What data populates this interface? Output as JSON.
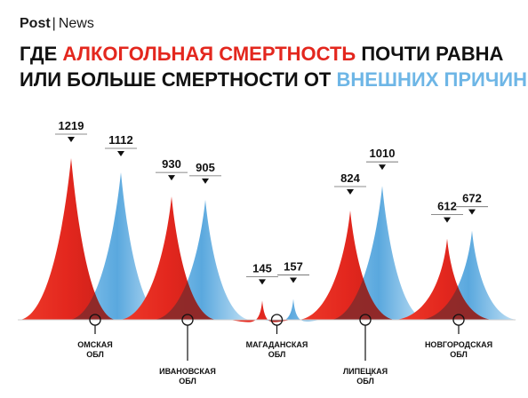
{
  "brand": {
    "name_part1": "Post",
    "name_part2": "News"
  },
  "title": {
    "line1_pre": "ГДЕ ",
    "line1_highlight": "АЛКОГОЛЬНАЯ СМЕРТНОСТЬ",
    "line1_post": " ПОЧТИ РАВНА",
    "line2_pre": "ИЛИ БОЛЬШЕ СМЕРТНОСТИ ОТ ",
    "line2_highlight": "ВНЕШНИХ ПРИЧИН"
  },
  "colors": {
    "alcohol": "#e3271e",
    "external": "#6eb6e6",
    "overlap": "#8c2a2a"
  },
  "chart_data": {
    "type": "area",
    "title": "ГДЕ АЛКОГОЛЬНАЯ СМЕРТНОСТЬ ПОЧТИ РАВНА ИЛИ БОЛЬШЕ СМЕРТНОСТИ ОТ ВНЕШНИХ ПРИЧИН",
    "categories": [
      [
        "ОМСКАЯ",
        "ОБЛ"
      ],
      [
        "ИВАНОВСКАЯ",
        "ОБЛ"
      ],
      [
        "МАГАДАНСКАЯ",
        "ОБЛ"
      ],
      [
        "ЛИПЕЦКАЯ",
        "ОБЛ"
      ],
      [
        "НОВГОРОДСКАЯ",
        "ОБЛ"
      ]
    ],
    "series": [
      {
        "color": "#e3271e",
        "values": [
          1219,
          930,
          145,
          824,
          612
        ]
      },
      {
        "color": "#6eb6e6",
        "values": [
          1112,
          905,
          157,
          1010,
          672
        ]
      }
    ],
    "legend": "none",
    "grid": false
  }
}
